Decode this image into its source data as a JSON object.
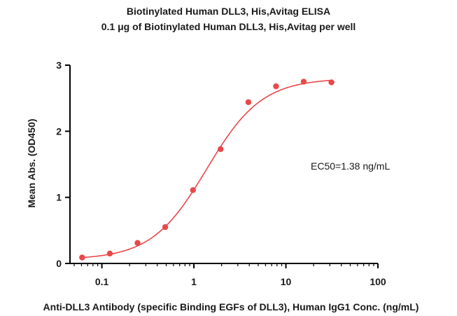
{
  "chart_data": {
    "type": "scatter",
    "title": "Biotinylated Human DLL3, His,Avitag ELISA",
    "subtitle": "0.1 μg of Biotinylated Human DLL3, His,Avitag per well",
    "xlabel": "Anti-DLL3 Antibody (specific Binding EGFs of DLL3), Human IgG1 Conc. (ng/mL)",
    "ylabel": "Mean Abs. (OD450)",
    "xscale": "log",
    "xlim": [
      0.045,
      100
    ],
    "ylim": [
      0,
      3
    ],
    "xticks": [
      0.1,
      1,
      10,
      100
    ],
    "xtick_labels": [
      "0.1",
      "1",
      "10",
      "100"
    ],
    "yticks": [
      0,
      1,
      2,
      3
    ],
    "ytick_labels": [
      "0",
      "1",
      "2",
      "3"
    ],
    "grid": false,
    "color": "#e8484a",
    "series": [
      {
        "x": [
          0.061,
          0.122,
          0.244,
          0.488,
          0.977,
          1.95,
          3.91,
          7.81,
          15.6,
          31.25
        ],
        "y": [
          0.09,
          0.15,
          0.31,
          0.55,
          1.11,
          1.73,
          2.44,
          2.68,
          2.75,
          2.74
        ]
      }
    ],
    "fit": {
      "bottom": 0.06,
      "top": 2.8,
      "ec50": 1.38,
      "hill": 1.45
    },
    "annotations": [
      "EC50=1.38 ng/mL"
    ]
  }
}
